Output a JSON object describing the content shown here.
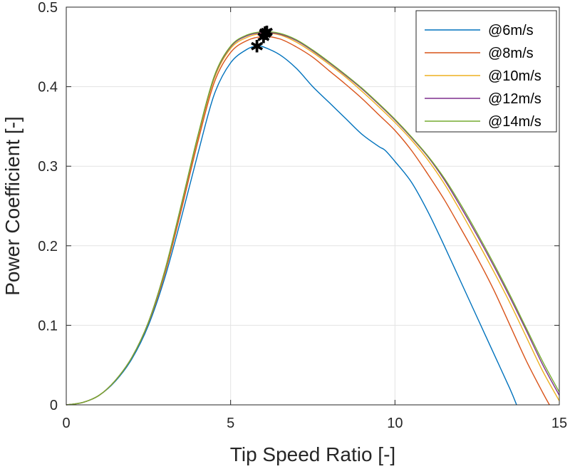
{
  "chart_data": {
    "type": "line",
    "title": "",
    "xlabel": "Tip Speed Ratio [-]",
    "ylabel": "Power Coefficient [-]",
    "xlim": [
      0,
      15
    ],
    "ylim": [
      0,
      0.5
    ],
    "xticks": [
      0,
      5,
      10,
      15
    ],
    "xtick_labels": [
      "0",
      "5",
      "10",
      "15"
    ],
    "yticks": [
      0,
      0.1,
      0.2,
      0.3,
      0.4,
      0.5
    ],
    "ytick_labels": [
      "0",
      "0.1",
      "0.2",
      "0.3",
      "0.4",
      "0.5"
    ],
    "grid": true,
    "legend_position": "top-right",
    "series": [
      {
        "name": "@6m/s",
        "color": "#0072BD",
        "x": [
          0,
          0.5,
          1,
          1.5,
          2,
          2.5,
          3,
          3.5,
          4,
          4.5,
          5,
          5.5,
          5.8,
          6,
          6.5,
          7,
          7.5,
          8,
          8.5,
          9,
          9.5,
          9.7,
          10,
          10.5,
          11,
          11.5,
          12,
          12.5,
          13,
          13.5,
          13.7
        ],
        "y": [
          0,
          0.003,
          0.012,
          0.03,
          0.058,
          0.1,
          0.16,
          0.235,
          0.315,
          0.39,
          0.43,
          0.447,
          0.451,
          0.45,
          0.44,
          0.423,
          0.4,
          0.38,
          0.36,
          0.34,
          0.325,
          0.32,
          0.306,
          0.28,
          0.243,
          0.2,
          0.155,
          0.11,
          0.065,
          0.02,
          0
        ]
      },
      {
        "name": "@8m/s",
        "color": "#D95319",
        "x": [
          0,
          0.5,
          1,
          1.5,
          2,
          2.5,
          3,
          3.5,
          4,
          4.5,
          5,
          5.5,
          6,
          6.5,
          7,
          7.5,
          8,
          8.5,
          9,
          9.5,
          10,
          10.5,
          11,
          11.5,
          12,
          12.5,
          13,
          13.5,
          14,
          14.5,
          14.7
        ],
        "y": [
          0,
          0.003,
          0.012,
          0.031,
          0.06,
          0.103,
          0.165,
          0.245,
          0.33,
          0.405,
          0.443,
          0.458,
          0.463,
          0.46,
          0.45,
          0.437,
          0.42,
          0.403,
          0.385,
          0.365,
          0.345,
          0.32,
          0.29,
          0.258,
          0.222,
          0.185,
          0.145,
          0.1,
          0.055,
          0.015,
          0
        ]
      },
      {
        "name": "@10m/s",
        "color": "#EDB120",
        "x": [
          0,
          0.5,
          1,
          1.5,
          2,
          2.5,
          3,
          3.5,
          4,
          4.5,
          5,
          5.5,
          6,
          6.5,
          7,
          7.5,
          8,
          8.5,
          9,
          9.5,
          10,
          10.5,
          11,
          11.5,
          12,
          12.5,
          13,
          13.5,
          14,
          14.5,
          15
        ],
        "y": [
          0,
          0.003,
          0.012,
          0.031,
          0.06,
          0.104,
          0.168,
          0.25,
          0.335,
          0.41,
          0.448,
          0.462,
          0.467,
          0.465,
          0.456,
          0.443,
          0.428,
          0.412,
          0.394,
          0.375,
          0.355,
          0.333,
          0.308,
          0.278,
          0.243,
          0.206,
          0.168,
          0.128,
          0.085,
          0.042,
          0.005
        ]
      },
      {
        "name": "@12m/s",
        "color": "#7E2F8E",
        "x": [
          0,
          0.5,
          1,
          1.5,
          2,
          2.5,
          3,
          3.5,
          4,
          4.5,
          5,
          5.5,
          6,
          6.5,
          7,
          7.5,
          8,
          8.5,
          9,
          9.5,
          10,
          10.5,
          11,
          11.5,
          12,
          12.5,
          13,
          13.5,
          14,
          14.5,
          15
        ],
        "y": [
          0,
          0.003,
          0.012,
          0.031,
          0.06,
          0.104,
          0.169,
          0.251,
          0.337,
          0.412,
          0.45,
          0.464,
          0.468,
          0.466,
          0.458,
          0.445,
          0.43,
          0.414,
          0.397,
          0.378,
          0.358,
          0.336,
          0.312,
          0.283,
          0.249,
          0.213,
          0.175,
          0.135,
          0.093,
          0.05,
          0.012
        ]
      },
      {
        "name": "@14m/s",
        "color": "#77AC30",
        "x": [
          0,
          0.5,
          1,
          1.5,
          2,
          2.5,
          3,
          3.5,
          4,
          4.5,
          5,
          5.5,
          6,
          6.5,
          7,
          7.5,
          8,
          8.5,
          9,
          9.5,
          10,
          10.5,
          11,
          11.5,
          12,
          12.5,
          13,
          13.5,
          14,
          14.5,
          15
        ],
        "y": [
          0,
          0.003,
          0.012,
          0.031,
          0.06,
          0.104,
          0.169,
          0.252,
          0.338,
          0.413,
          0.451,
          0.465,
          0.469,
          0.467,
          0.459,
          0.446,
          0.431,
          0.415,
          0.398,
          0.379,
          0.359,
          0.337,
          0.313,
          0.285,
          0.252,
          0.216,
          0.178,
          0.138,
          0.096,
          0.054,
          0.016
        ]
      }
    ],
    "peak_markers": [
      {
        "series": "@6m/s",
        "x": 5.8,
        "y": 0.451
      },
      {
        "series": "@8m/s",
        "x": 6.0,
        "y": 0.463
      },
      {
        "series": "@10m/s",
        "x": 6.05,
        "y": 0.467
      },
      {
        "series": "@12m/s",
        "x": 6.05,
        "y": 0.468
      },
      {
        "series": "@14m/s",
        "x": 6.1,
        "y": 0.469
      }
    ],
    "marker_symbol": "✱"
  }
}
